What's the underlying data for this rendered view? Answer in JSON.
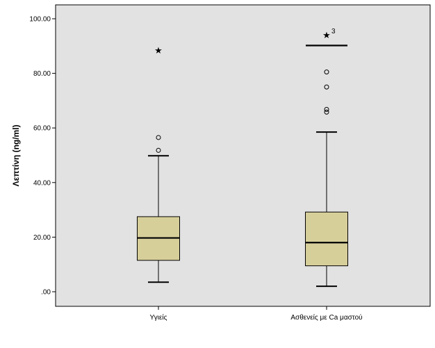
{
  "chart_data": {
    "type": "boxplot",
    "ylabel": "Λεπτίνη (ng/ml)",
    "ylim": [
      0,
      105
    ],
    "yticks": [
      {
        "value": 0,
        "label": ".00"
      },
      {
        "value": 20,
        "label": "20.00"
      },
      {
        "value": 40,
        "label": "40.00"
      },
      {
        "value": 60,
        "label": "60.00"
      },
      {
        "value": 80,
        "label": "80.00"
      },
      {
        "value": 100,
        "label": "100.00"
      }
    ],
    "grid": false,
    "colors": {
      "plot_background": "#e2e2e2",
      "box_fill": "#d7cf9a",
      "stroke": "#000000"
    },
    "categories": [
      "Υγιείς",
      "Ασθενείς με Ca μαστού"
    ],
    "series": [
      {
        "whisker_low": 3.5,
        "q1": 11.5,
        "median": 19.7,
        "q3": 27.5,
        "whisker_high": 49.8,
        "outliers": [
          51.8,
          56.5
        ],
        "extremes": [
          {
            "value": 88.5,
            "case_label": ""
          }
        ]
      },
      {
        "whisker_low": 2.0,
        "q1": 9.5,
        "median": 18.0,
        "q3": 29.2,
        "whisker_high": 58.5,
        "whisker_high_extra": 90.2,
        "outliers": [
          65.8,
          66.8,
          75.0,
          80.5
        ],
        "extremes": [
          {
            "value": 94.2,
            "case_label": "3"
          }
        ]
      }
    ]
  }
}
